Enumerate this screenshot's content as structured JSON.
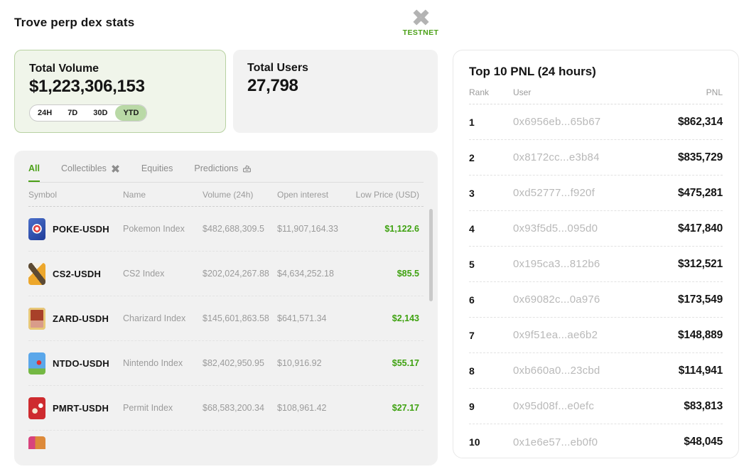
{
  "header": {
    "title": "Trove perp dex stats",
    "network_label": "TESTNET"
  },
  "stats": {
    "volume": {
      "label": "Total Volume",
      "value": "$1,223,306,153",
      "ranges": [
        "24H",
        "7D",
        "30D",
        "YTD"
      ],
      "active_range": "YTD"
    },
    "users": {
      "label": "Total Users",
      "value": "27,798"
    }
  },
  "markets": {
    "tabs": [
      {
        "label": "All",
        "active": true
      },
      {
        "label": "Collectibles",
        "icon": "trove-asterisk-icon"
      },
      {
        "label": "Equities"
      },
      {
        "label": "Predictions",
        "icon": "ballot-icon"
      }
    ],
    "columns": [
      "Symbol",
      "Name",
      "Volume (24h)",
      "Open interest",
      "Low Price (USD)"
    ],
    "rows": [
      {
        "icon": "pokemon-card-icon",
        "symbol": "POKE-USDH",
        "name": "Pokemon Index",
        "volume": "$482,688,309.5",
        "open_interest": "$11,907,164.33",
        "low_price": "$1,122.6"
      },
      {
        "icon": "cs2-card-icon",
        "symbol": "CS2-USDH",
        "name": "CS2 Index",
        "volume": "$202,024,267.88",
        "open_interest": "$4,634,252.18",
        "low_price": "$85.5"
      },
      {
        "icon": "charizard-card-icon",
        "symbol": "ZARD-USDH",
        "name": "Charizard Index",
        "volume": "$145,601,863.58",
        "open_interest": "$641,571.34",
        "low_price": "$2,143"
      },
      {
        "icon": "nintendo-card-icon",
        "symbol": "NTDO-USDH",
        "name": "Nintendo Index",
        "volume": "$82,402,950.95",
        "open_interest": "$10,916.92",
        "low_price": "$55.17"
      },
      {
        "icon": "permit-card-icon",
        "symbol": "PMRT-USDH",
        "name": "Permit Index",
        "volume": "$68,583,200.34",
        "open_interest": "$108,961.42",
        "low_price": "$27.17"
      }
    ],
    "partial_row_visible": true
  },
  "pnl": {
    "title": "Top 10 PNL (24 hours)",
    "columns": [
      "Rank",
      "User",
      "PNL"
    ],
    "rows": [
      {
        "rank": "1",
        "user": "0x6956eb...65b67",
        "pnl": "$862,314"
      },
      {
        "rank": "2",
        "user": "0x8172cc...e3b84",
        "pnl": "$835,729"
      },
      {
        "rank": "3",
        "user": "0xd52777...f920f",
        "pnl": "$475,281"
      },
      {
        "rank": "4",
        "user": "0x93f5d5...095d0",
        "pnl": "$417,840"
      },
      {
        "rank": "5",
        "user": "0x195ca3...812b6",
        "pnl": "$312,521"
      },
      {
        "rank": "6",
        "user": "0x69082c...0a976",
        "pnl": "$173,549"
      },
      {
        "rank": "7",
        "user": "0x9f51ea...ae6b2",
        "pnl": "$148,889"
      },
      {
        "rank": "8",
        "user": "0xb660a0...23cbd",
        "pnl": "$114,941"
      },
      {
        "rank": "9",
        "user": "0x95d08f...e0efc",
        "pnl": "$83,813"
      },
      {
        "rank": "10",
        "user": "0x1e6e57...eb0f0",
        "pnl": "$48,045"
      }
    ]
  },
  "colors": {
    "accent_green": "#4ba017",
    "price_green": "#3fa211",
    "pill_active_bg": "#b9d9a6",
    "volume_card_bg": "#f0f5ea",
    "volume_card_border": "#b8d2a2"
  }
}
